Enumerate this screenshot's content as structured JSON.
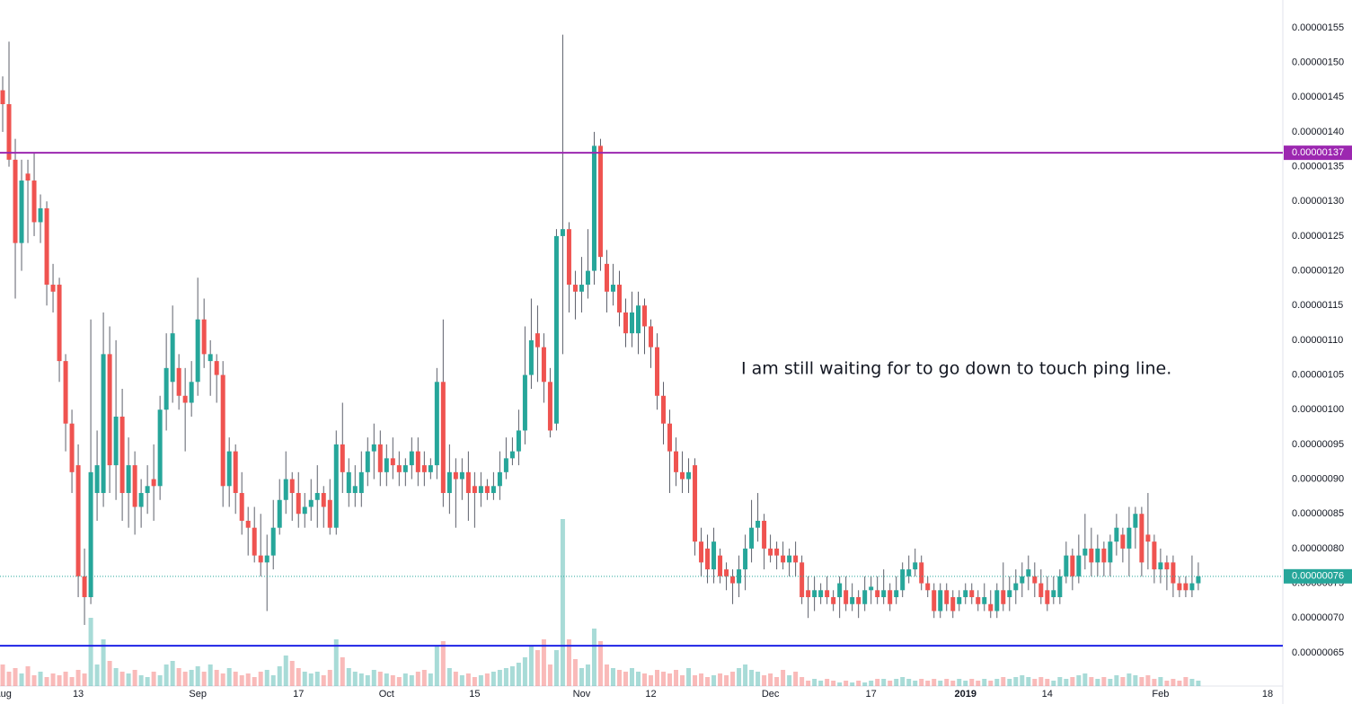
{
  "chart_data": {
    "type": "candlestick",
    "annotation": "I am still waiting for to go down to touch ping line.",
    "up_color": "#26a69a",
    "down_color": "#ef5350",
    "xlim": [
      -0.43,
      203.43
    ],
    "ylim": [
      6.02e-07,
      1.59e-06
    ],
    "vlim": [
      0,
      100
    ],
    "xticks": [
      {
        "value": 0,
        "label": "Aug"
      },
      {
        "value": 12,
        "label": "13"
      },
      {
        "value": 31,
        "label": "Sep"
      },
      {
        "value": 47,
        "label": "17"
      },
      {
        "value": 61,
        "label": "Oct"
      },
      {
        "value": 75,
        "label": "15"
      },
      {
        "value": 92,
        "label": "Nov"
      },
      {
        "value": 103,
        "label": "12"
      },
      {
        "value": 122,
        "label": "Dec"
      },
      {
        "value": 138,
        "label": "17"
      },
      {
        "value": 153,
        "label": "2019"
      },
      {
        "value": 166,
        "label": "14"
      },
      {
        "value": 184,
        "label": "Feb"
      },
      {
        "value": 201,
        "label": "18"
      }
    ],
    "yticks": [
      {
        "value": 6.5e-07,
        "label": "0.00000065"
      },
      {
        "value": 7e-07,
        "label": "0.00000070"
      },
      {
        "value": 7.5e-07,
        "label": "0.00000075"
      },
      {
        "value": 8e-07,
        "label": "0.00000080"
      },
      {
        "value": 8.5e-07,
        "label": "0.00000085"
      },
      {
        "value": 9e-07,
        "label": "0.00000090"
      },
      {
        "value": 9.5e-07,
        "label": "0.00000095"
      },
      {
        "value": 1e-06,
        "label": "0.00000100"
      },
      {
        "value": 1.05e-06,
        "label": "0.00000105"
      },
      {
        "value": 1.1e-06,
        "label": "0.00000110"
      },
      {
        "value": 1.15e-06,
        "label": "0.00000115"
      },
      {
        "value": 1.2e-06,
        "label": "0.00000120"
      },
      {
        "value": 1.25e-06,
        "label": "0.00000125"
      },
      {
        "value": 1.3e-06,
        "label": "0.00000130"
      },
      {
        "value": 1.35e-06,
        "label": "0.00000135"
      },
      {
        "value": 1.4e-06,
        "label": "0.00000140"
      },
      {
        "value": 1.45e-06,
        "label": "0.00000145"
      },
      {
        "value": 1.5e-06,
        "label": "0.00000150"
      },
      {
        "value": 1.55e-06,
        "label": "0.00000155"
      }
    ],
    "hlines": [
      {
        "value": 1.37e-06,
        "label": "0.00000137",
        "color": "#9c27b0"
      },
      {
        "value": 6.6e-07,
        "color": "#1e22e6"
      }
    ],
    "last_price": {
      "value": 7.6e-07,
      "label": "0.00000076",
      "color": "#26a69a"
    },
    "x": [
      0,
      1,
      2,
      3,
      4,
      5,
      6,
      7,
      8,
      9,
      10,
      11,
      12,
      13,
      14,
      15,
      16,
      17,
      18,
      19,
      20,
      21,
      22,
      23,
      24,
      25,
      26,
      27,
      28,
      29,
      30,
      31,
      32,
      33,
      34,
      35,
      36,
      37,
      38,
      39,
      40,
      41,
      42,
      43,
      44,
      45,
      46,
      47,
      48,
      49,
      50,
      51,
      52,
      53,
      54,
      55,
      56,
      57,
      58,
      59,
      60,
      61,
      62,
      63,
      64,
      65,
      66,
      67,
      68,
      69,
      70,
      71,
      72,
      73,
      74,
      75,
      76,
      77,
      78,
      79,
      80,
      81,
      82,
      83,
      84,
      85,
      86,
      87,
      88,
      89,
      90,
      91,
      92,
      93,
      94,
      95,
      96,
      97,
      98,
      99,
      100,
      101,
      102,
      103,
      104,
      105,
      106,
      107,
      108,
      109,
      110,
      111,
      112,
      113,
      114,
      115,
      116,
      117,
      118,
      119,
      120,
      121,
      122,
      123,
      124,
      125,
      126,
      127,
      128,
      129,
      130,
      131,
      132,
      133,
      134,
      135,
      136,
      137,
      138,
      139,
      140,
      141,
      142,
      143,
      144,
      145,
      146,
      147,
      148,
      149,
      150,
      151,
      152,
      153,
      154,
      155,
      156,
      157,
      158,
      159,
      160,
      161,
      162,
      163,
      164,
      165,
      166,
      167,
      168,
      169,
      170,
      171,
      172,
      173,
      174,
      175,
      176,
      177,
      178,
      179,
      180,
      181,
      182,
      183,
      184,
      185,
      186,
      187,
      188,
      189,
      190
    ],
    "open": [
      1.46e-06,
      1.44e-06,
      1.36e-06,
      1.24e-06,
      1.34e-06,
      1.33e-06,
      1.27e-06,
      1.29e-06,
      1.18e-06,
      1.18e-06,
      1.07e-06,
      9.8e-07,
      9.2e-07,
      7.6e-07,
      7.3e-07,
      8.8e-07,
      8.8e-07,
      1.08e-06,
      9.2e-07,
      9.9e-07,
      8.8e-07,
      9.2e-07,
      8.6e-07,
      8.8e-07,
      9e-07,
      8.9e-07,
      1e-06,
      1.04e-06,
      1.06e-06,
      1.02e-06,
      1.01e-06,
      1.04e-06,
      1.13e-06,
      1.07e-06,
      1.07e-06,
      1.05e-06,
      8.9e-07,
      9.4e-07,
      8.8e-07,
      8.4e-07,
      8.3e-07,
      7.9e-07,
      7.8e-07,
      7.9e-07,
      8.3e-07,
      8.7e-07,
      9e-07,
      8.8e-07,
      8.5e-07,
      8.6e-07,
      8.7e-07,
      8.8e-07,
      8.7e-07,
      8.3e-07,
      9.5e-07,
      8.8e-07,
      8.8e-07,
      8.8e-07,
      9.1e-07,
      9.4e-07,
      9.5e-07,
      9.1e-07,
      9.3e-07,
      9.2e-07,
      9.1e-07,
      9.2e-07,
      9.4e-07,
      9.2e-07,
      9.1e-07,
      9.2e-07,
      1.04e-06,
      8.8e-07,
      9.1e-07,
      9e-07,
      9.1e-07,
      8.9e-07,
      8.8e-07,
      8.9e-07,
      8.8e-07,
      8.9e-07,
      9.1e-07,
      9.3e-07,
      9.4e-07,
      9.7e-07,
      1.05e-06,
      1.11e-06,
      1.09e-06,
      1.04e-06,
      9.8e-07,
      1.25e-06,
      1.26e-06,
      1.18e-06,
      1.17e-06,
      1.18e-06,
      1.2e-06,
      1.38e-06,
      1.21e-06,
      1.17e-06,
      1.18e-06,
      1.14e-06,
      1.11e-06,
      1.11e-06,
      1.15e-06,
      1.12e-06,
      1.09e-06,
      1.02e-06,
      9.8e-07,
      9.4e-07,
      9.1e-07,
      9e-07,
      9.2e-07,
      8.1e-07,
      8e-07,
      7.7e-07,
      7.9e-07,
      7.7e-07,
      7.6e-07,
      7.5e-07,
      7.7e-07,
      8e-07,
      8.3e-07,
      8.4e-07,
      8e-07,
      8e-07,
      7.9e-07,
      7.8e-07,
      7.9e-07,
      7.8e-07,
      7.4e-07,
      7.3e-07,
      7.3e-07,
      7.4e-07,
      7.3e-07,
      7.3e-07,
      7.4e-07,
      7.2e-07,
      7.3e-07,
      7.2e-07,
      7.4e-07,
      7.4e-07,
      7.3e-07,
      7.4e-07,
      7.3e-07,
      7.4e-07,
      7.6e-07,
      7.7e-07,
      7.8e-07,
      7.5e-07,
      7.4e-07,
      7.1e-07,
      7.4e-07,
      7.3e-07,
      7.2e-07,
      7.3e-07,
      7.4e-07,
      7.3e-07,
      7.2e-07,
      7.2e-07,
      7.1e-07,
      7.4e-07,
      7.3e-07,
      7.4e-07,
      7.5e-07,
      7.6e-07,
      7.6e-07,
      7.5e-07,
      7.4e-07,
      7.3e-07,
      7.3e-07,
      7.6e-07,
      7.9e-07,
      7.6e-07,
      7.9e-07,
      8e-07,
      7.8e-07,
      8e-07,
      7.8e-07,
      8.1e-07,
      8.2e-07,
      8e-07,
      8.3e-07,
      8.5e-07,
      8.2e-07,
      8.1e-07,
      7.7e-07,
      7.8e-07,
      7.8e-07,
      7.5e-07,
      7.5e-07,
      7.4e-07,
      7.5e-07
    ],
    "high": [
      1.48e-06,
      1.53e-06,
      1.39e-06,
      1.36e-06,
      1.36e-06,
      1.37e-06,
      1.31e-06,
      1.3e-06,
      1.21e-06,
      1.19e-06,
      1.08e-06,
      1e-06,
      9.5e-07,
      8e-07,
      1.13e-06,
      9.7e-07,
      1.14e-06,
      1.12e-06,
      1.1e-06,
      1.03e-06,
      9.6e-07,
      9.4e-07,
      9e-07,
      9.2e-07,
      9.5e-07,
      1.02e-06,
      1.11e-06,
      1.15e-06,
      1.08e-06,
      1.06e-06,
      1.07e-06,
      1.19e-06,
      1.16e-06,
      1.1e-06,
      1.08e-06,
      1.07e-06,
      9.6e-07,
      9.5e-07,
      9.1e-07,
      8.6e-07,
      8.6e-07,
      8.5e-07,
      8.2e-07,
      8.7e-07,
      9e-07,
      9.4e-07,
      9.1e-07,
      9.1e-07,
      8.8e-07,
      9e-07,
      9.2e-07,
      8.9e-07,
      9e-07,
      9.7e-07,
      1.01e-06,
      9.3e-07,
      9.2e-07,
      9.4e-07,
      9.6e-07,
      9.8e-07,
      9.7e-07,
      9.5e-07,
      9.6e-07,
      9.4e-07,
      9.3e-07,
      9.6e-07,
      9.6e-07,
      9.4e-07,
      9.3e-07,
      1.06e-06,
      1.13e-06,
      9.5e-07,
      9.3e-07,
      9.3e-07,
      9.4e-07,
      9.1e-07,
      9.1e-07,
      9e-07,
      9.1e-07,
      9.4e-07,
      9.6e-07,
      9.6e-07,
      1e-06,
      1.12e-06,
      1.16e-06,
      1.15e-06,
      1.11e-06,
      1.06e-06,
      1.26e-06,
      1.54e-06,
      1.27e-06,
      1.2e-06,
      1.22e-06,
      1.26e-06,
      1.4e-06,
      1.39e-06,
      1.23e-06,
      1.21e-06,
      1.2e-06,
      1.16e-06,
      1.17e-06,
      1.17e-06,
      1.16e-06,
      1.13e-06,
      1.11e-06,
      1.04e-06,
      1e-06,
      9.6e-07,
      9.4e-07,
      9.3e-07,
      9.3e-07,
      8.3e-07,
      8.2e-07,
      8.3e-07,
      8e-07,
      7.8e-07,
      7.7e-07,
      7.9e-07,
      8.2e-07,
      8.7e-07,
      8.8e-07,
      8.5e-07,
      8.2e-07,
      8.1e-07,
      8.1e-07,
      8e-07,
      8.1e-07,
      7.9e-07,
      7.6e-07,
      7.6e-07,
      7.5e-07,
      7.6e-07,
      7.4e-07,
      7.6e-07,
      7.6e-07,
      7.5e-07,
      7.4e-07,
      7.6e-07,
      7.6e-07,
      7.6e-07,
      7.7e-07,
      7.5e-07,
      7.6e-07,
      7.8e-07,
      7.9e-07,
      8e-07,
      7.9e-07,
      7.6e-07,
      7.5e-07,
      7.5e-07,
      7.5e-07,
      7.4e-07,
      7.4e-07,
      7.5e-07,
      7.5e-07,
      7.4e-07,
      7.5e-07,
      7.4e-07,
      7.5e-07,
      7.8e-07,
      7.6e-07,
      7.7e-07,
      7.8e-07,
      7.9e-07,
      7.8e-07,
      7.7e-07,
      7.6e-07,
      7.6e-07,
      7.7e-07,
      8.1e-07,
      8e-07,
      8.2e-07,
      8.5e-07,
      8.3e-07,
      8.2e-07,
      8.1e-07,
      8.2e-07,
      8.5e-07,
      8.3e-07,
      8.6e-07,
      8.6e-07,
      8.6e-07,
      8.8e-07,
      8.2e-07,
      8e-07,
      7.9e-07,
      7.9e-07,
      7.6e-07,
      7.6e-07,
      7.9e-07,
      7.8e-07
    ],
    "low": [
      1.4e-06,
      1.35e-06,
      1.16e-06,
      1.2e-06,
      1.24e-06,
      1.25e-06,
      1.24e-06,
      1.15e-06,
      1.14e-06,
      1.04e-06,
      9.4e-07,
      8.8e-07,
      7.3e-07,
      6.9e-07,
      7.2e-07,
      8.4e-07,
      8.6e-07,
      8.8e-07,
      8.7e-07,
      8.4e-07,
      8.3e-07,
      8.2e-07,
      8.3e-07,
      8.5e-07,
      8.4e-07,
      8.7e-07,
      9.7e-07,
      1.01e-06,
      1e-06,
      9.4e-07,
      9.9e-07,
      1.02e-06,
      1.06e-06,
      1.02e-06,
      1.01e-06,
      8.6e-07,
      8.6e-07,
      8.5e-07,
      8.2e-07,
      7.9e-07,
      7.8e-07,
      7.6e-07,
      7.1e-07,
      7.7e-07,
      8.2e-07,
      8.5e-07,
      8.4e-07,
      8.3e-07,
      8.3e-07,
      8.4e-07,
      8.3e-07,
      8.3e-07,
      8.2e-07,
      8.2e-07,
      8.8e-07,
      8.6e-07,
      8.6e-07,
      8.6e-07,
      8.9e-07,
      9e-07,
      8.9e-07,
      8.9e-07,
      9e-07,
      8.9e-07,
      8.9e-07,
      9e-07,
      8.9e-07,
      8.9e-07,
      9e-07,
      9e-07,
      8.6e-07,
      8.5e-07,
      8.3e-07,
      8.7e-07,
      8.4e-07,
      8.3e-07,
      8.6e-07,
      8.7e-07,
      8.7e-07,
      8.7e-07,
      9e-07,
      9.2e-07,
      9.2e-07,
      9.5e-07,
      1.03e-06,
      1.04e-06,
      1.01e-06,
      9.6e-07,
      9.7e-07,
      1.08e-06,
      1.14e-06,
      1.13e-06,
      1.14e-06,
      1.16e-06,
      1.18e-06,
      1.2e-06,
      1.14e-06,
      1.15e-06,
      1.12e-06,
      1.09e-06,
      1.09e-06,
      1.08e-06,
      1.08e-06,
      1.06e-06,
      1e-06,
      9.5e-07,
      8.8e-07,
      8.9e-07,
      8.8e-07,
      8.8e-07,
      7.9e-07,
      7.6e-07,
      7.5e-07,
      7.5e-07,
      7.5e-07,
      7.4e-07,
      7.2e-07,
      7.3e-07,
      7.4e-07,
      7.8e-07,
      8.1e-07,
      7.7e-07,
      7.8e-07,
      7.7e-07,
      7.7e-07,
      7.6e-07,
      7.6e-07,
      7.2e-07,
      7e-07,
      7.1e-07,
      7.2e-07,
      7.2e-07,
      7.1e-07,
      7e-07,
      7.1e-07,
      7.1e-07,
      7e-07,
      7.1e-07,
      7.2e-07,
      7.2e-07,
      7.2e-07,
      7.1e-07,
      7.2e-07,
      7.3e-07,
      7.5e-07,
      7.6e-07,
      7.4e-07,
      7.3e-07,
      7e-07,
      7e-07,
      7.1e-07,
      7e-07,
      7.1e-07,
      7.2e-07,
      7.2e-07,
      7.1e-07,
      7.1e-07,
      7e-07,
      7e-07,
      7.1e-07,
      7.1e-07,
      7.2e-07,
      7.3e-07,
      7.4e-07,
      7.3e-07,
      7.2e-07,
      7.1e-07,
      7.2e-07,
      7.2e-07,
      7.5e-07,
      7.4e-07,
      7.5e-07,
      7.7e-07,
      7.6e-07,
      7.6e-07,
      7.6e-07,
      7.6e-07,
      7.9e-07,
      7.8e-07,
      7.6e-07,
      8e-07,
      7.6e-07,
      7.7e-07,
      7.5e-07,
      7.5e-07,
      7.4e-07,
      7.3e-07,
      7.3e-07,
      7.3e-07,
      7.3e-07,
      7.4e-07
    ],
    "close": [
      1.44e-06,
      1.36e-06,
      1.24e-06,
      1.33e-06,
      1.33e-06,
      1.27e-06,
      1.29e-06,
      1.18e-06,
      1.17e-06,
      1.07e-06,
      9.8e-07,
      9.1e-07,
      7.6e-07,
      7.3e-07,
      9.1e-07,
      9.2e-07,
      1.08e-06,
      9.2e-07,
      9.9e-07,
      8.8e-07,
      9.2e-07,
      8.6e-07,
      8.8e-07,
      8.9e-07,
      8.9e-07,
      1e-06,
      1.06e-06,
      1.11e-06,
      1.02e-06,
      1.01e-06,
      1.04e-06,
      1.13e-06,
      1.08e-06,
      1.08e-06,
      1.05e-06,
      8.9e-07,
      9.4e-07,
      8.8e-07,
      8.4e-07,
      8.3e-07,
      7.9e-07,
      7.8e-07,
      7.9e-07,
      8.3e-07,
      8.7e-07,
      9e-07,
      8.8e-07,
      8.5e-07,
      8.6e-07,
      8.7e-07,
      8.8e-07,
      8.6e-07,
      8.3e-07,
      9.5e-07,
      9.1e-07,
      9.1e-07,
      8.9e-07,
      9.1e-07,
      9.4e-07,
      9.5e-07,
      9.1e-07,
      9.3e-07,
      9.2e-07,
      9.1e-07,
      9.2e-07,
      9.4e-07,
      9.1e-07,
      9.1e-07,
      9.2e-07,
      1.04e-06,
      8.8e-07,
      9.1e-07,
      9e-07,
      9.1e-07,
      8.8e-07,
      8.8e-07,
      8.9e-07,
      8.8e-07,
      8.9e-07,
      9.1e-07,
      9.3e-07,
      9.4e-07,
      9.7e-07,
      1.05e-06,
      1.1e-06,
      1.09e-06,
      1.04e-06,
      9.7e-07,
      1.25e-06,
      1.26e-06,
      1.18e-06,
      1.17e-06,
      1.18e-06,
      1.2e-06,
      1.38e-06,
      1.22e-06,
      1.17e-06,
      1.18e-06,
      1.14e-06,
      1.11e-06,
      1.14e-06,
      1.15e-06,
      1.12e-06,
      1.09e-06,
      1.02e-06,
      9.8e-07,
      9.4e-07,
      9.1e-07,
      9e-07,
      9.1e-07,
      8.1e-07,
      7.8e-07,
      7.7e-07,
      8.1e-07,
      7.6e-07,
      7.6e-07,
      7.5e-07,
      7.7e-07,
      8e-07,
      8.3e-07,
      8.4e-07,
      8e-07,
      7.9e-07,
      7.9e-07,
      7.8e-07,
      7.9e-07,
      7.8e-07,
      7.3e-07,
      7.3e-07,
      7.4e-07,
      7.4e-07,
      7.3e-07,
      7.2e-07,
      7.5e-07,
      7.2e-07,
      7.3e-07,
      7.2e-07,
      7.4e-07,
      7.45e-07,
      7.3e-07,
      7.4e-07,
      7.2e-07,
      7.4e-07,
      7.7e-07,
      7.7e-07,
      7.8e-07,
      7.5e-07,
      7.4e-07,
      7.1e-07,
      7.4e-07,
      7.2e-07,
      7.1e-07,
      7.3e-07,
      7.4e-07,
      7.3e-07,
      7.2e-07,
      7.3e-07,
      7.1e-07,
      7.4e-07,
      7.2e-07,
      7.4e-07,
      7.5e-07,
      7.6e-07,
      7.7e-07,
      7.5e-07,
      7.3e-07,
      7.2e-07,
      7.4e-07,
      7.6e-07,
      7.9e-07,
      7.6e-07,
      7.9e-07,
      8e-07,
      7.8e-07,
      8e-07,
      7.8e-07,
      8.1e-07,
      8.3e-07,
      8e-07,
      8.3e-07,
      8.5e-07,
      7.8e-07,
      8.1e-07,
      7.7e-07,
      7.8e-07,
      7.7e-07,
      7.5e-07,
      7.4e-07,
      7.4e-07,
      7.5e-07,
      7.6e-07
    ],
    "volume": [
      12,
      8,
      10,
      7,
      11,
      6,
      8,
      5,
      7,
      6,
      8,
      5,
      9,
      7,
      38,
      12,
      26,
      14,
      10,
      8,
      7,
      9,
      6,
      5,
      8,
      6,
      12,
      14,
      10,
      8,
      9,
      11,
      8,
      12,
      9,
      7,
      10,
      8,
      6,
      7,
      5,
      8,
      9,
      6,
      11,
      17,
      14,
      10,
      8,
      7,
      8,
      6,
      9,
      26,
      16,
      10,
      8,
      7,
      6,
      9,
      8,
      7,
      6,
      5,
      7,
      6,
      8,
      9,
      7,
      22,
      25,
      10,
      8,
      6,
      7,
      5,
      6,
      7,
      8,
      9,
      10,
      11,
      13,
      16,
      22,
      20,
      26,
      12,
      20,
      93,
      26,
      15,
      10,
      12,
      32,
      25,
      12,
      10,
      9,
      8,
      10,
      8,
      7,
      6,
      9,
      8,
      7,
      9,
      6,
      10,
      6,
      7,
      5,
      6,
      7,
      6,
      8,
      10,
      12,
      9,
      8,
      6,
      7,
      5,
      9,
      6,
      8,
      5,
      3,
      4,
      3,
      4,
      3,
      2,
      3,
      2,
      3,
      2,
      3,
      4,
      4,
      3,
      4,
      5,
      4,
      3,
      4,
      3,
      4,
      3,
      4,
      3,
      4,
      3,
      4,
      3,
      4,
      3,
      4,
      5,
      4,
      5,
      6,
      5,
      4,
      5,
      4,
      3,
      5,
      4,
      5,
      6,
      7,
      5,
      4,
      5,
      4,
      6,
      5,
      7,
      6,
      5,
      6,
      4,
      5,
      3,
      4,
      3,
      5,
      4,
      3
    ]
  }
}
